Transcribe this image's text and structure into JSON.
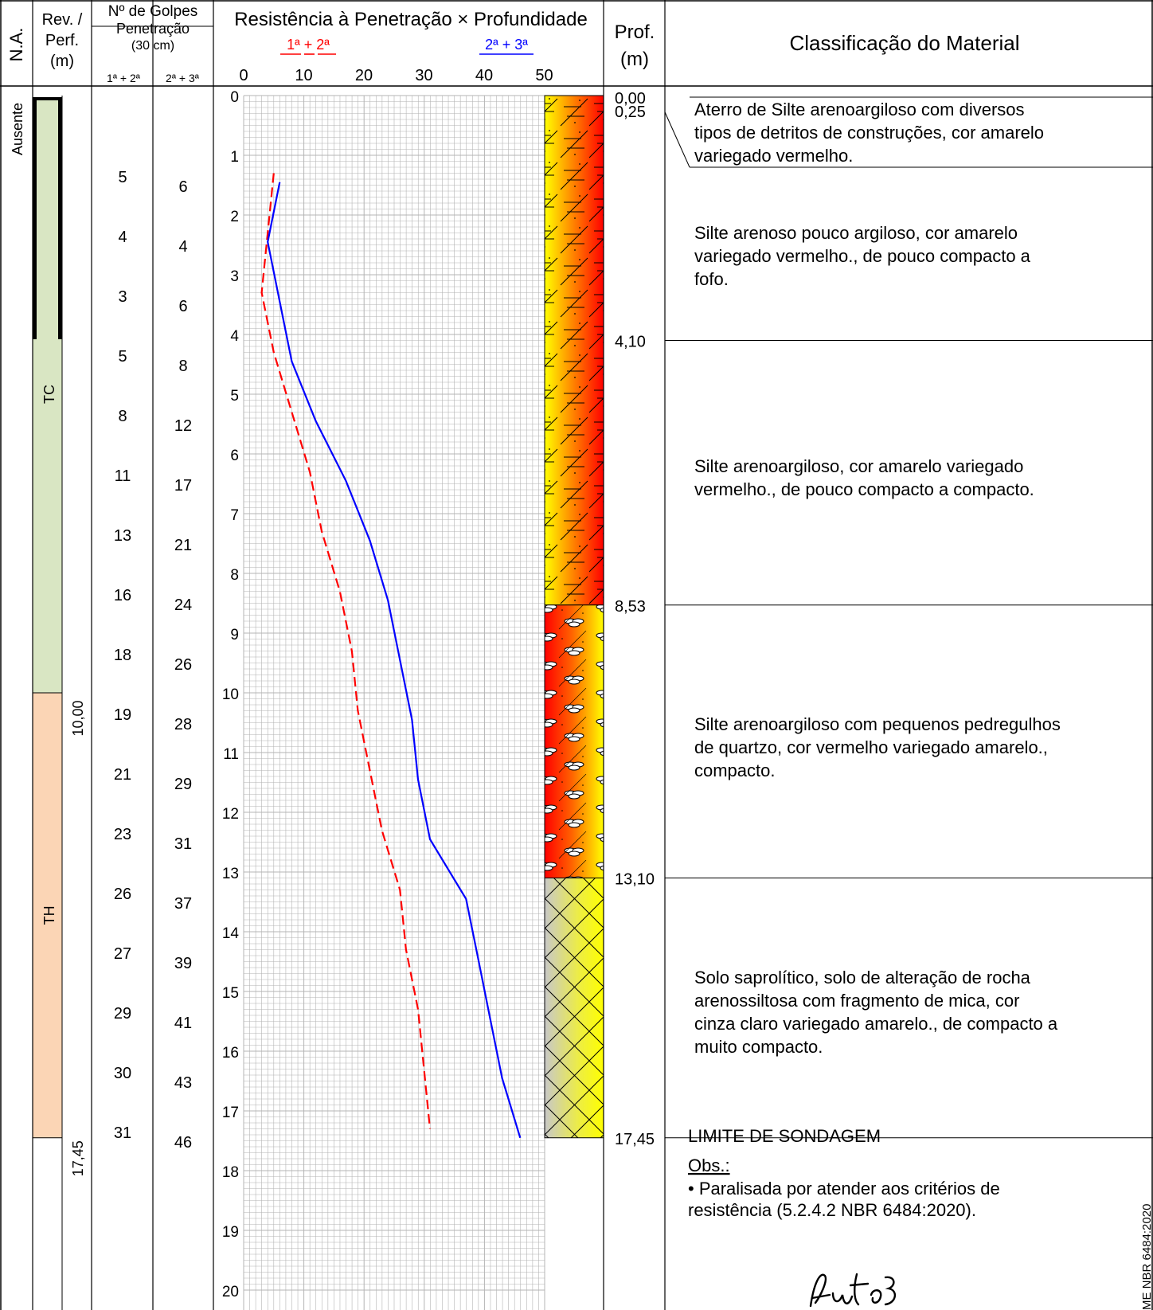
{
  "header": {
    "na": "N.A.",
    "rev_line1": "Rev. /",
    "rev_line2": "Perf.",
    "rev_line3": "(m)",
    "golpes_title": "Nº de Golpes",
    "penetracao": "Penetração",
    "penetracao_unit": "(30 cm)",
    "col_a": "1ª + 2ª",
    "col_b": "2ª + 3ª",
    "chart_title": "Resistência à Penetração × Profundidade",
    "legend_a": "1ª + 2ª",
    "legend_b": "2ª + 3ª",
    "prof_line1": "Prof.",
    "prof_line2": "(m)",
    "classificacao": "Classificação do Material"
  },
  "na_value": "Ausente",
  "rev_segments": [
    {
      "label": "TC",
      "from": 0,
      "to": 10.0,
      "color": "#d9e6c3"
    },
    {
      "label": "TH",
      "from": 10.0,
      "to": 17.45,
      "color": "#fbd5b5"
    }
  ],
  "perf_marks": [
    "10,00",
    "17,45"
  ],
  "chart_data": {
    "type": "line",
    "x_label_ticks": [
      "0",
      "10",
      "20",
      "30",
      "40",
      "50"
    ],
    "xlim": [
      0,
      50
    ],
    "y_ticks": [
      "0",
      "1",
      "2",
      "3",
      "4",
      "5",
      "6",
      "7",
      "8",
      "9",
      "10",
      "11",
      "12",
      "13",
      "14",
      "15",
      "16",
      "17",
      "18",
      "19",
      "20"
    ],
    "ylim": [
      0,
      20
    ],
    "grid": true,
    "series": [
      {
        "name": "1ª + 2ª",
        "color": "#ff0000",
        "dash": true,
        "points": [
          [
            5,
            1.3
          ],
          [
            4,
            2.3
          ],
          [
            3,
            3.3
          ],
          [
            5,
            4.3
          ],
          [
            8,
            5.3
          ],
          [
            11,
            6.3
          ],
          [
            13,
            7.3
          ],
          [
            16,
            8.3
          ],
          [
            18,
            9.3
          ],
          [
            19,
            10.3
          ],
          [
            21,
            11.3
          ],
          [
            23,
            12.3
          ],
          [
            26,
            13.3
          ],
          [
            27,
            14.3
          ],
          [
            29,
            15.3
          ],
          [
            30,
            16.3
          ],
          [
            31,
            17.3
          ]
        ]
      },
      {
        "name": "2ª + 3ª",
        "color": "#0000ff",
        "dash": false,
        "points": [
          [
            6,
            1.45
          ],
          [
            4,
            2.45
          ],
          [
            6,
            3.45
          ],
          [
            8,
            4.45
          ],
          [
            12,
            5.45
          ],
          [
            17,
            6.45
          ],
          [
            21,
            7.45
          ],
          [
            24,
            8.45
          ],
          [
            26,
            9.45
          ],
          [
            28,
            10.45
          ],
          [
            29,
            11.45
          ],
          [
            31,
            12.45
          ],
          [
            37,
            13.45
          ],
          [
            39,
            14.45
          ],
          [
            41,
            15.45
          ],
          [
            43,
            16.45
          ],
          [
            46,
            17.45
          ]
        ]
      }
    ]
  },
  "golpes": [
    {
      "a": "5",
      "b": "6"
    },
    {
      "a": "4",
      "b": "4"
    },
    {
      "a": "3",
      "b": "6"
    },
    {
      "a": "5",
      "b": "8"
    },
    {
      "a": "8",
      "b": "12"
    },
    {
      "a": "11",
      "b": "17"
    },
    {
      "a": "13",
      "b": "21"
    },
    {
      "a": "16",
      "b": "24"
    },
    {
      "a": "18",
      "b": "26"
    },
    {
      "a": "19",
      "b": "28"
    },
    {
      "a": "21",
      "b": "29"
    },
    {
      "a": "23",
      "b": "31"
    },
    {
      "a": "26",
      "b": "37"
    },
    {
      "a": "27",
      "b": "39"
    },
    {
      "a": "29",
      "b": "41"
    },
    {
      "a": "30",
      "b": "43"
    },
    {
      "a": "31",
      "b": "46"
    }
  ],
  "layers": [
    {
      "from": 0.0,
      "to": 8.53,
      "pattern": "silt",
      "top_color": "#ffff00",
      "bottom_color": "#ff0000"
    },
    {
      "from": 8.53,
      "to": 13.1,
      "pattern": "gravel",
      "top_color": "#ff0000",
      "bottom_color": "#ffff00"
    },
    {
      "from": 13.1,
      "to": 17.45,
      "pattern": "cross",
      "top_color": "#c8c8c8",
      "bottom_color": "#ffff00"
    }
  ],
  "prof_labels": [
    {
      "value": 0.0,
      "text": "0,00"
    },
    {
      "value": 0.25,
      "text": "0,25"
    },
    {
      "value": 4.1,
      "text": "4,10"
    },
    {
      "value": 8.53,
      "text": "8,53"
    },
    {
      "value": 13.1,
      "text": "13,10"
    },
    {
      "value": 17.45,
      "text": "17,45"
    }
  ],
  "descriptions": [
    {
      "from": 0.0,
      "to": 1.2,
      "lines": [
        "Aterro de Silte arenoargiloso com diversos",
        "tipos de detritos de construções, cor amarelo",
        "variegado vermelho."
      ]
    },
    {
      "from": 1.2,
      "to": 4.1,
      "lines": [
        "Silte arenoso pouco argiloso, cor amarelo",
        "variegado vermelho., de pouco compacto a",
        "fofo."
      ]
    },
    {
      "from": 4.1,
      "to": 8.53,
      "lines": [
        "Silte arenoargiloso, cor amarelo variegado",
        "vermelho., de pouco compacto a compacto."
      ]
    },
    {
      "from": 8.53,
      "to": 13.1,
      "lines": [
        "Silte arenoargiloso com pequenos pedregulhos",
        "de quartzo, cor vermelho variegado amarelo.,",
        "compacto."
      ]
    },
    {
      "from": 13.1,
      "to": 17.45,
      "lines": [
        "Solo saprolítico, solo de alteração de rocha",
        "arenossiltosa com fragmento de mica, cor",
        "cinza claro variegado amarelo., de compacto a",
        "muito compacto."
      ]
    }
  ],
  "limite": "LIMITE DE SONDAGEM",
  "obs_title": "Obs.:",
  "obs_lines": [
    "• Paralisada por atender aos critérios de",
    "resistência (5.2.4.2 NBR 6484:2020)."
  ],
  "side_note": "ME NBR 6484:2020",
  "colors": {
    "line": "#000000",
    "grid": "#b4b4b4"
  }
}
